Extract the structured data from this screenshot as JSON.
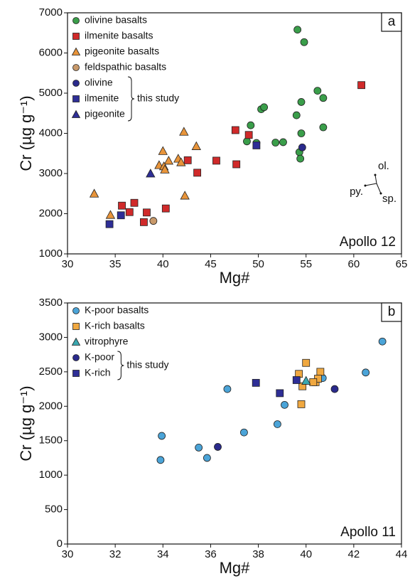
{
  "chart_data": [
    {
      "type": "scatter",
      "panel_label": "a",
      "annotation": "Apollo 12",
      "arrow_labels": [
        "ol.",
        "py.",
        "sp."
      ],
      "x_label": "Mg#",
      "y_label": "Cr (µg g⁻¹)",
      "group_label": "this study",
      "xlim": [
        30,
        65
      ],
      "xticks": [
        30,
        35,
        40,
        45,
        50,
        55,
        60,
        65
      ],
      "ylim": [
        1000,
        7000
      ],
      "yticks": [
        1000,
        2000,
        3000,
        4000,
        5000,
        6000,
        7000
      ],
      "series": [
        {
          "name": "olivine basalts",
          "color": "#3a9e4a",
          "marker": "circle",
          "x": [
            54.1,
            54.8,
            56.2,
            56.8,
            54.5,
            50.3,
            50.6,
            54.0,
            49.2,
            54.5,
            56.8,
            48.8,
            49.8,
            51.8,
            52.6,
            54.3,
            54.4
          ],
          "values": [
            6580,
            6270,
            5060,
            4880,
            4780,
            4600,
            4650,
            4450,
            4200,
            4000,
            4150,
            3800,
            3760,
            3770,
            3780,
            3530,
            3370
          ]
        },
        {
          "name": "ilmenite basalts",
          "color": "#d02a2a",
          "marker": "square",
          "x": [
            60.8,
            47.6,
            49.0,
            45.6,
            47.7,
            42.6,
            43.6,
            40.3,
            38.3,
            38.0,
            37.0,
            36.5,
            35.7
          ],
          "values": [
            5200,
            4080,
            3960,
            3320,
            3230,
            3330,
            3020,
            2130,
            2030,
            1790,
            2270,
            2040,
            2200
          ]
        },
        {
          "name": "pigeonite basalts",
          "color": "#e8943a",
          "marker": "triangle",
          "x": [
            32.8,
            34.5,
            42.2,
            43.5,
            40.0,
            41.6,
            40.6,
            39.6,
            40.1,
            40.2,
            41.9,
            42.3
          ],
          "values": [
            2500,
            1970,
            4040,
            3680,
            3560,
            3370,
            3320,
            3210,
            3180,
            3100,
            3280,
            2450
          ]
        },
        {
          "name": "feldspathic basalts",
          "color": "#c8996a",
          "marker": "circle",
          "x": [
            39.0
          ],
          "values": [
            1820
          ]
        },
        {
          "name": "olivine",
          "color": "#2a2a8c",
          "marker": "circle",
          "this_study": true,
          "x": [
            54.6
          ],
          "values": [
            3650
          ]
        },
        {
          "name": "ilmenite",
          "color": "#2e2e96",
          "marker": "square",
          "this_study": true,
          "x": [
            34.4,
            35.6,
            49.8
          ],
          "values": [
            1740,
            1960,
            3700
          ]
        },
        {
          "name": "pigeonite",
          "color": "#2e2e96",
          "marker": "triangle",
          "this_study": true,
          "x": [
            38.7
          ],
          "values": [
            3000
          ]
        }
      ]
    },
    {
      "type": "scatter",
      "panel_label": "b",
      "annotation": "Apollo 11",
      "x_label": "Mg#",
      "y_label": "Cr (µg g⁻¹)",
      "group_label": "this study",
      "xlim": [
        30,
        44
      ],
      "xticks": [
        30,
        32,
        34,
        36,
        38,
        40,
        42,
        44
      ],
      "ylim": [
        0,
        3500
      ],
      "yticks": [
        0,
        500,
        1000,
        1500,
        2000,
        2500,
        3000,
        3500
      ],
      "series": [
        {
          "name": "K-poor basalts",
          "color": "#4ba4d8",
          "marker": "circle",
          "x": [
            33.9,
            33.95,
            35.5,
            35.85,
            36.7,
            37.4,
            38.8,
            39.1,
            40.7,
            42.5,
            43.2
          ],
          "values": [
            1220,
            1570,
            1400,
            1250,
            2250,
            1620,
            1740,
            2020,
            2410,
            2490,
            2940
          ]
        },
        {
          "name": "K-rich basalts",
          "color": "#f0a840",
          "marker": "square",
          "x": [
            40.0,
            40.6,
            40.4,
            40.5,
            39.7,
            39.85,
            40.3,
            39.8
          ],
          "values": [
            2630,
            2500,
            2350,
            2400,
            2470,
            2290,
            2350,
            2030
          ]
        },
        {
          "name": "vitrophyre",
          "color": "#3aa8b0",
          "marker": "triangle",
          "x": [
            40.0
          ],
          "values": [
            2370
          ]
        },
        {
          "name": "K-poor",
          "color": "#2a2a8c",
          "marker": "circle",
          "this_study": true,
          "x": [
            36.3,
            41.2
          ],
          "values": [
            1410,
            2250
          ]
        },
        {
          "name": "K-rich",
          "color": "#2e2e96",
          "marker": "square",
          "this_study": true,
          "x": [
            37.9,
            38.9,
            39.6
          ],
          "values": [
            2340,
            2190,
            2380
          ]
        }
      ]
    }
  ]
}
